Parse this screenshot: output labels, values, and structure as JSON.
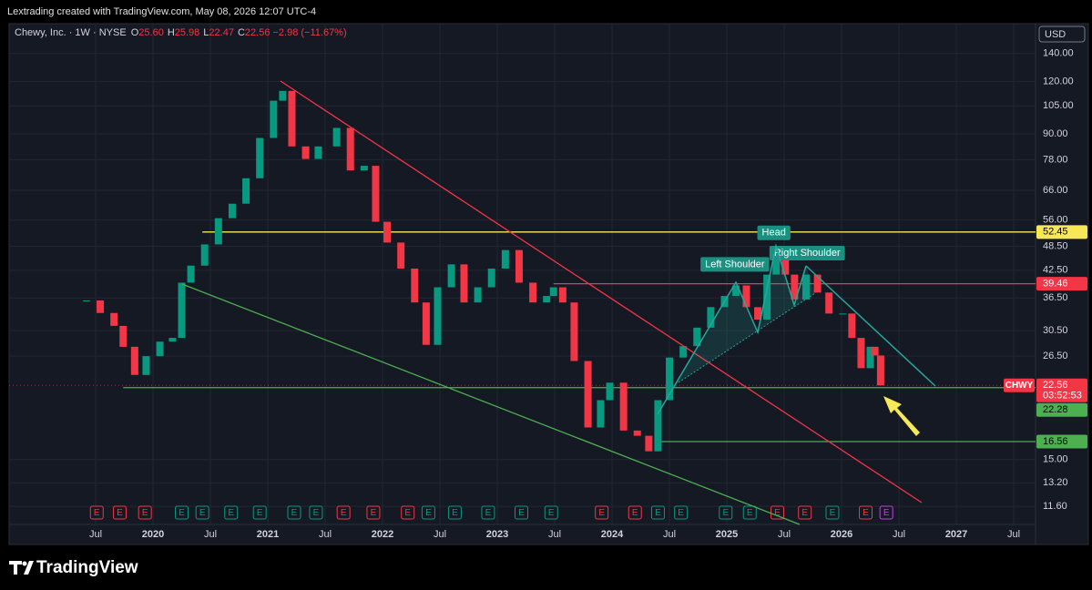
{
  "header": {
    "credit": "Lextrading created with TradingView.com, May 08, 2026 12:07 UTC-4"
  },
  "brand": "TradingView",
  "chart_data": {
    "type": "candlestick",
    "symbol_title": "Chewy, Inc. · 1W · NYSE",
    "ohlc": [
      {
        "key": "O",
        "value": "25.60"
      },
      {
        "key": "H",
        "value": "25.98"
      },
      {
        "key": "L",
        "value": "22.47"
      },
      {
        "key": "C",
        "value": "22.56"
      }
    ],
    "change": "−2.98 (−11.67%)",
    "currency": "USD",
    "log_scale": true,
    "grid": true,
    "x": [
      2019.42,
      2019.54,
      2019.66,
      2019.74,
      2019.84,
      2019.94,
      2020.06,
      2020.17,
      2020.25,
      2020.33,
      2020.45,
      2020.57,
      2020.69,
      2020.81,
      2020.93,
      2021.05,
      2021.13,
      2021.21,
      2021.33,
      2021.44,
      2021.6,
      2021.72,
      2021.84,
      2021.94,
      2022.04,
      2022.16,
      2022.28,
      2022.38,
      2022.48,
      2022.6,
      2022.71,
      2022.83,
      2022.95,
      2023.07,
      2023.19,
      2023.31,
      2023.43,
      2023.49,
      2023.57,
      2023.67,
      2023.79,
      2023.9,
      2023.98,
      2024.1,
      2024.22,
      2024.32,
      2024.4,
      2024.5,
      2024.62,
      2024.74,
      2024.86,
      2024.98,
      2025.08,
      2025.17,
      2025.27,
      2025.35,
      2025.43,
      2025.51,
      2025.59,
      2025.69,
      2025.79,
      2025.89,
      2026.01,
      2026.09,
      2026.17,
      2026.25,
      2026.29,
      2026.34
    ],
    "series": [
      {
        "name": "CHWY",
        "up_color": "#089981",
        "down_color": "#f23645",
        "values": [
          36.0,
          33.6,
          31.3,
          27.9,
          23.9,
          26.5,
          28.7,
          29.3,
          39.7,
          43.6,
          49.0,
          56.6,
          61.3,
          70.5,
          88,
          108,
          114,
          84,
          78.4,
          84,
          93,
          73.6,
          75.5,
          55.5,
          49.5,
          42.9,
          35.6,
          28.2,
          38.7,
          43.9,
          35.6,
          38.7,
          42.9,
          47.5,
          39.7,
          35.6,
          36.9,
          38.7,
          35.6,
          25.8,
          17.9,
          20.8,
          22.9,
          17.6,
          17.1,
          15.7,
          20.8,
          26.3,
          28.0,
          31.0,
          34.7,
          36.9,
          39.1,
          34.7,
          32.4,
          41.5,
          46.3,
          41.5,
          36.2,
          41.5,
          37.6,
          33.5,
          33.5,
          29.3,
          24.8,
          27.9,
          26.6,
          22.56
        ]
      }
    ],
    "last": {
      "value": 22.56,
      "countdown": "03:52:53",
      "color": "#f23645"
    },
    "levels": [
      {
        "value": 52.45,
        "color": "#f7e85a",
        "start": 2020.43
      },
      {
        "value": 39.46,
        "color": "#f23645",
        "start": 2023.49
      },
      {
        "value": 22.28,
        "color": "#4caf50",
        "start": 2019.74
      },
      {
        "value": 16.56,
        "color": "#4caf50",
        "start": 2024.4
      }
    ],
    "annotations": [
      {
        "text": "Left Shoulder",
        "x": 2025.07,
        "y": 43.9
      },
      {
        "text": "Head",
        "x": 2025.41,
        "y": 52.2
      },
      {
        "text": "Right Shoulder",
        "x": 2025.7,
        "y": 46.7
      }
    ],
    "earnings": {
      "label": "E",
      "events": [
        {
          "x": 2019.51,
          "color": "#f23645"
        },
        {
          "x": 2019.71,
          "color": "#f23645"
        },
        {
          "x": 2019.93,
          "color": "#f23645"
        },
        {
          "x": 2020.25,
          "color": "#089981"
        },
        {
          "x": 2020.43,
          "color": "#089981"
        },
        {
          "x": 2020.68,
          "color": "#089981"
        },
        {
          "x": 2020.93,
          "color": "#089981"
        },
        {
          "x": 2021.23,
          "color": "#089981"
        },
        {
          "x": 2021.42,
          "color": "#089981"
        },
        {
          "x": 2021.66,
          "color": "#f23645"
        },
        {
          "x": 2021.92,
          "color": "#f23645"
        },
        {
          "x": 2022.22,
          "color": "#f23645"
        },
        {
          "x": 2022.4,
          "color": "#089981"
        },
        {
          "x": 2022.63,
          "color": "#089981"
        },
        {
          "x": 2022.92,
          "color": "#089981"
        },
        {
          "x": 2023.21,
          "color": "#089981"
        },
        {
          "x": 2023.47,
          "color": "#089981"
        },
        {
          "x": 2023.91,
          "color": "#f23645"
        },
        {
          "x": 2024.2,
          "color": "#f23645"
        },
        {
          "x": 2024.4,
          "color": "#089981"
        },
        {
          "x": 2024.6,
          "color": "#089981"
        },
        {
          "x": 2024.99,
          "color": "#089981"
        },
        {
          "x": 2025.2,
          "color": "#089981"
        },
        {
          "x": 2025.44,
          "color": "#f23645"
        },
        {
          "x": 2025.68,
          "color": "#f23645"
        },
        {
          "x": 2025.92,
          "color": "#089981"
        },
        {
          "x": 2026.21,
          "color": "#f23645"
        },
        {
          "x": 2026.39,
          "color": "#c041e0"
        }
      ]
    },
    "xlim": [
      2018.746,
      2027.69
    ],
    "ylim": [
      10.5,
      165
    ],
    "xticks": [
      {
        "value": 2019.5,
        "label": "Jul"
      },
      2020,
      {
        "value": 2020.5,
        "label": "Jul"
      },
      2021,
      {
        "value": 2021.5,
        "label": "Jul"
      },
      2022,
      {
        "value": 2022.5,
        "label": "Jul"
      },
      2023,
      {
        "value": 2023.5,
        "label": "Jul"
      },
      2024,
      {
        "value": 2024.5,
        "label": "Jul"
      },
      2025,
      {
        "value": 2025.5,
        "label": "Jul"
      },
      2026,
      {
        "value": 2026.5,
        "label": "Jul"
      },
      2027,
      {
        "value": 2027.5,
        "label": "Jul"
      }
    ],
    "yticks": [
      {
        "value": 140,
        "label": "140.00"
      },
      {
        "value": 120,
        "label": "120.00"
      },
      {
        "value": 105,
        "label": "105.00"
      },
      {
        "value": 90,
        "label": "90.00"
      },
      {
        "value": 78,
        "label": "78.00"
      },
      {
        "value": 66,
        "label": "66.00"
      },
      {
        "value": 56,
        "label": "56.00"
      },
      {
        "value": 48.5,
        "label": "48.50"
      },
      {
        "value": 42.5,
        "label": "42.50"
      },
      {
        "value": 36.5,
        "label": "36.50"
      },
      {
        "value": 30.5,
        "label": "30.50"
      },
      {
        "value": 26.5,
        "label": "26.50"
      },
      {
        "value": 15,
        "label": "15.00"
      },
      {
        "value": 13.2,
        "label": "13.20"
      },
      {
        "value": 11.6,
        "label": "11.60"
      }
    ]
  }
}
